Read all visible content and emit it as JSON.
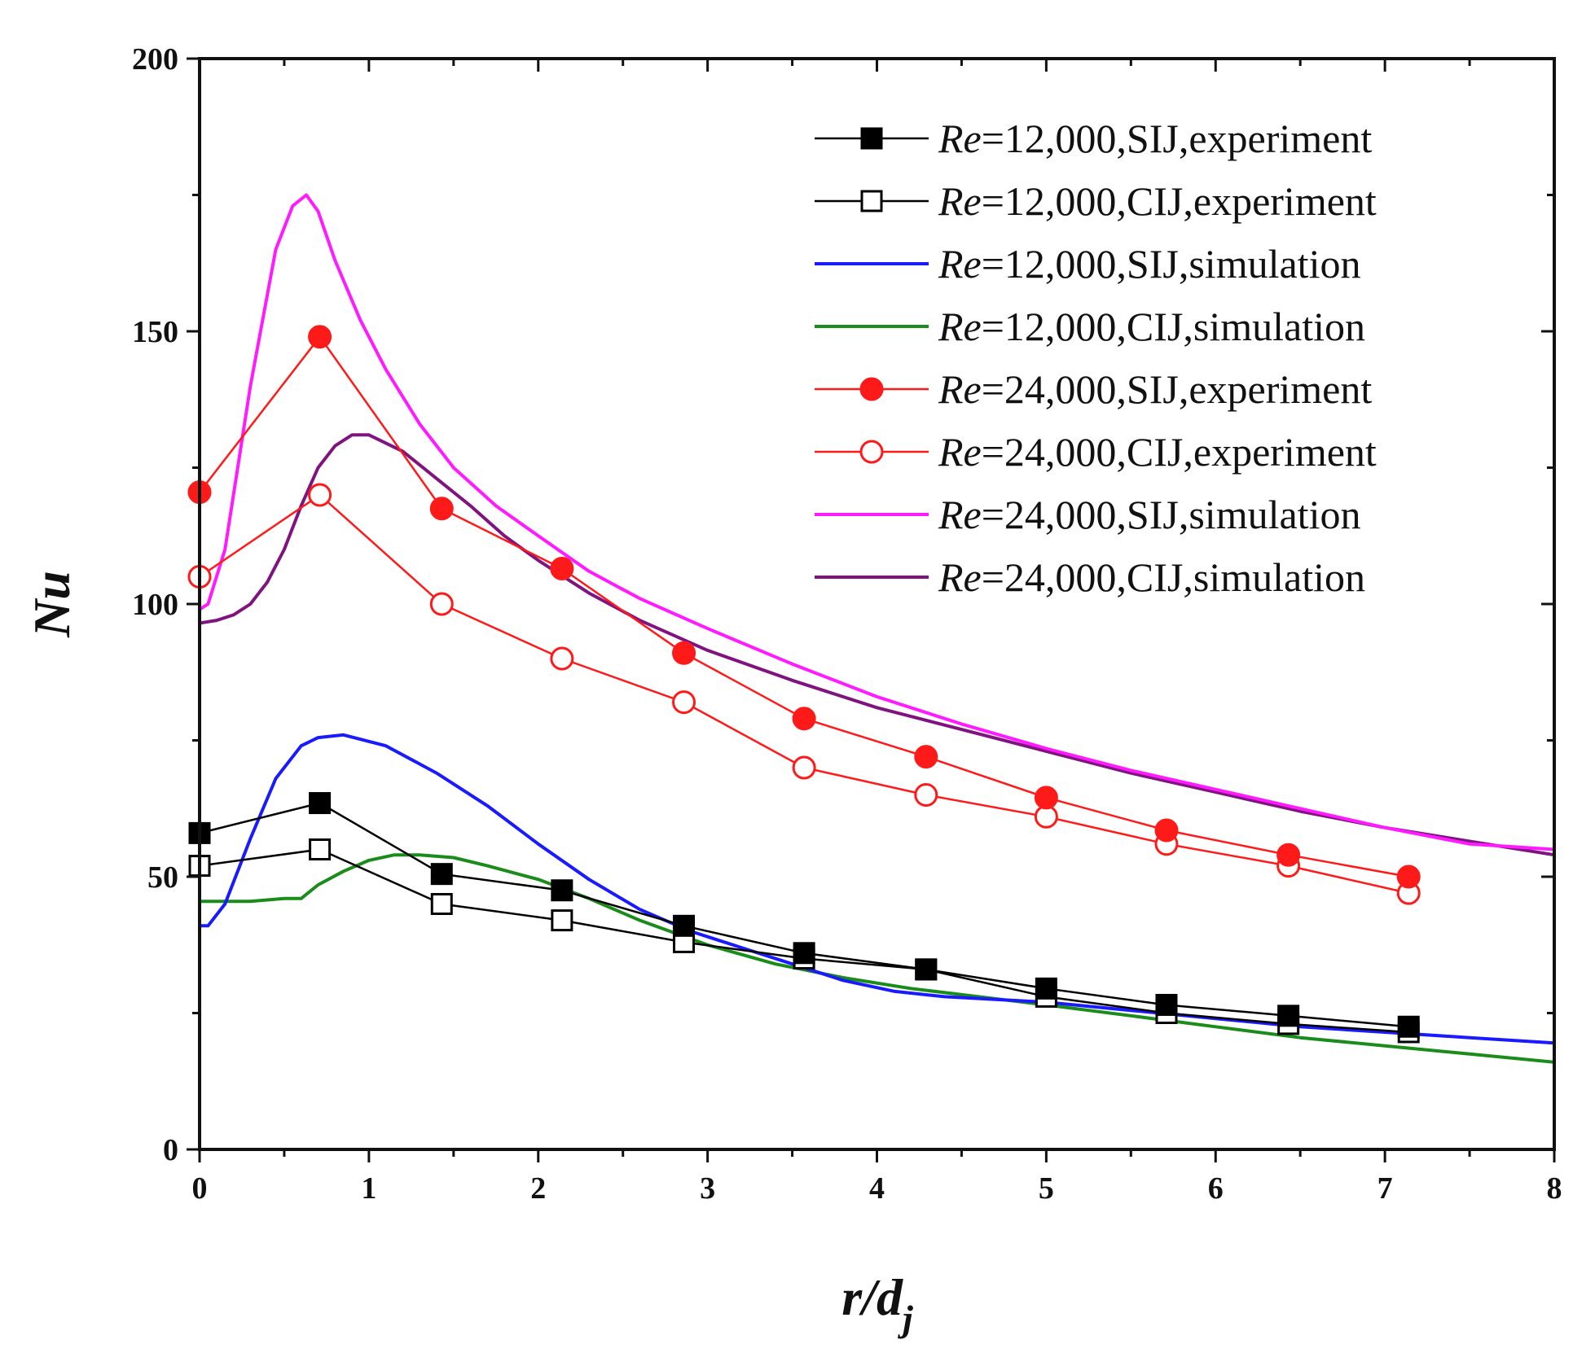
{
  "chart_data": {
    "type": "line",
    "title": "",
    "xlabel": "r/d",
    "xlabel_sub": "j",
    "ylabel": "Nu",
    "xlim": [
      0,
      8
    ],
    "ylim": [
      0,
      200
    ],
    "xticks": [
      0,
      1,
      2,
      3,
      4,
      5,
      6,
      7,
      8
    ],
    "yticks": [
      0,
      50,
      100,
      150,
      200
    ],
    "grid": false,
    "legend_position": "top-right",
    "series": [
      {
        "name": "Re=12,000,SIJ,experiment",
        "name_prefix": "Re",
        "name_rest": "=12,000,SIJ,experiment",
        "color": "#000000",
        "marker": "square-filled",
        "line": true,
        "x": [
          0,
          0.71,
          1.43,
          2.14,
          2.86,
          3.57,
          4.29,
          5.0,
          5.71,
          6.43,
          7.14
        ],
        "y": [
          58,
          63.5,
          50.5,
          47.5,
          41,
          36,
          33,
          29.5,
          26.5,
          24.5,
          22.5
        ]
      },
      {
        "name": "Re=12,000,CIJ,experiment",
        "name_prefix": "Re",
        "name_rest": "=12,000,CIJ,experiment",
        "color": "#000000",
        "marker": "square-open",
        "line": true,
        "x": [
          0,
          0.71,
          1.43,
          2.14,
          2.86,
          3.57,
          4.29,
          5.0,
          5.71,
          6.43,
          7.14
        ],
        "y": [
          52,
          55,
          45,
          42,
          38,
          35,
          33,
          28,
          25,
          23,
          21.5
        ]
      },
      {
        "name": "Re=12,000,SIJ,simulation",
        "name_prefix": "Re",
        "name_rest": "=12,000,SIJ,simulation",
        "color": "#1a1aff",
        "marker": "none",
        "line": true,
        "x": [
          0,
          0.05,
          0.15,
          0.3,
          0.45,
          0.6,
          0.7,
          0.85,
          1.1,
          1.4,
          1.7,
          2.0,
          2.3,
          2.6,
          2.9,
          3.2,
          3.5,
          3.8,
          4.1,
          4.4,
          4.7,
          5.0,
          5.5,
          6.0,
          6.5,
          7.0,
          7.5,
          8.0
        ],
        "y": [
          41,
          41,
          45,
          57,
          68,
          74,
          75.5,
          76,
          74,
          69,
          63,
          56,
          49.5,
          44,
          40,
          37,
          34,
          31,
          29,
          28,
          27.5,
          27,
          25.5,
          24,
          22.5,
          21.5,
          20.5,
          19.5
        ]
      },
      {
        "name": "Re=12,000,CIJ,simulation",
        "name_prefix": "Re",
        "name_rest": "=12,000,CIJ,simulation",
        "color": "#1a8c1a",
        "marker": "none",
        "line": true,
        "x": [
          0,
          0.3,
          0.5,
          0.6,
          0.7,
          0.85,
          1.0,
          1.15,
          1.3,
          1.5,
          1.7,
          2.0,
          2.3,
          2.6,
          3.0,
          3.4,
          3.8,
          4.2,
          4.6,
          5.0,
          5.5,
          6.0,
          6.5,
          7.0,
          7.5,
          8.0
        ],
        "y": [
          45.5,
          45.5,
          46,
          46,
          48.5,
          51,
          53,
          54,
          54,
          53.5,
          52,
          49.5,
          46,
          42,
          37.5,
          34,
          31.5,
          29.5,
          28,
          26.5,
          24.5,
          22.5,
          20.5,
          19,
          17.5,
          16
        ]
      },
      {
        "name": "Re=24,000,SIJ,experiment",
        "name_prefix": "Re",
        "name_rest": "=24,000,SIJ,experiment",
        "color": "#ff1a1a",
        "marker": "circle-filled",
        "line": true,
        "x": [
          0,
          0.71,
          1.43,
          2.14,
          2.86,
          3.57,
          4.29,
          5.0,
          5.71,
          6.43,
          7.14
        ],
        "y": [
          120.5,
          149,
          117.5,
          106.5,
          91,
          79,
          72,
          64.5,
          58.5,
          54,
          50
        ]
      },
      {
        "name": "Re=24,000,CIJ,experiment",
        "name_prefix": "Re",
        "name_rest": "=24,000,CIJ,experiment",
        "color": "#ff1a1a",
        "marker": "circle-open",
        "line": true,
        "x": [
          0,
          0.71,
          1.43,
          2.14,
          2.86,
          3.57,
          4.29,
          5.0,
          5.71,
          6.43,
          7.14
        ],
        "y": [
          105,
          120,
          100,
          90,
          82,
          70,
          65,
          61,
          56,
          52,
          47
        ]
      },
      {
        "name": "Re=24,000,SIJ,simulation",
        "name_prefix": "Re",
        "name_rest": "=24,000,SIJ,simulation",
        "color": "#ff1aff",
        "marker": "none",
        "line": true,
        "x": [
          0,
          0.05,
          0.15,
          0.3,
          0.45,
          0.55,
          0.63,
          0.7,
          0.8,
          0.95,
          1.1,
          1.3,
          1.5,
          1.75,
          2.0,
          2.3,
          2.6,
          3.0,
          3.5,
          4.0,
          4.5,
          5.0,
          5.5,
          6.0,
          6.5,
          7.0,
          7.5,
          8.0
        ],
        "y": [
          99,
          100,
          110,
          140,
          165,
          173,
          175,
          172,
          163,
          152,
          143,
          133,
          125,
          118,
          112.5,
          106,
          101,
          95.5,
          89,
          83,
          78,
          73.5,
          69.5,
          66,
          62.5,
          59,
          56,
          55
        ]
      },
      {
        "name": "Re=24,000,CIJ,simulation",
        "name_prefix": "Re",
        "name_rest": "=24,000,CIJ,simulation",
        "color": "#7f137f",
        "marker": "none",
        "line": true,
        "x": [
          0,
          0.1,
          0.2,
          0.3,
          0.4,
          0.5,
          0.6,
          0.7,
          0.8,
          0.9,
          1.0,
          1.2,
          1.4,
          1.6,
          1.8,
          2.0,
          2.3,
          2.6,
          3.0,
          3.5,
          4.0,
          4.5,
          5.0,
          5.5,
          6.0,
          6.5,
          7.0,
          7.5,
          8.0
        ],
        "y": [
          96.5,
          97,
          98,
          100,
          104,
          110,
          118,
          125,
          129,
          131,
          131,
          128,
          123,
          118,
          112.5,
          108,
          102,
          97,
          91.5,
          86,
          81,
          77,
          73,
          69,
          65.5,
          62,
          59,
          56.5,
          54
        ]
      }
    ]
  }
}
